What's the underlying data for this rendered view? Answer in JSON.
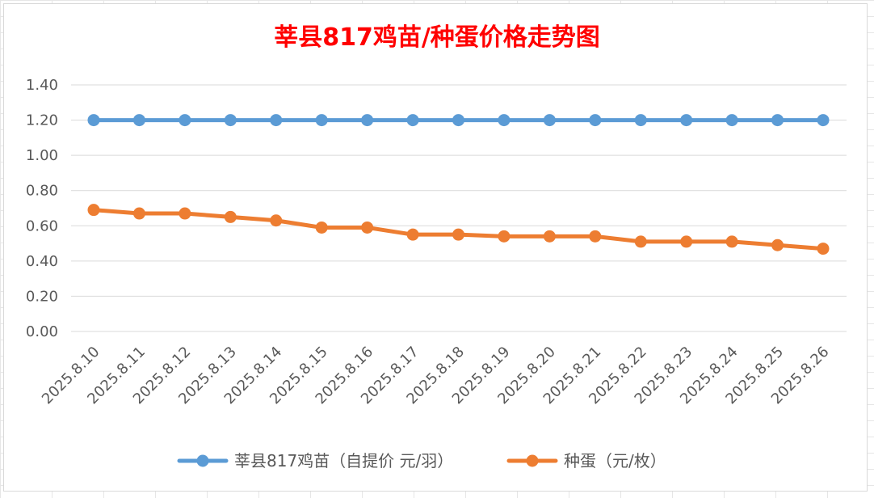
{
  "chart_data": {
    "type": "line",
    "title": "莘县817鸡苗/种蛋价格走势图",
    "categories": [
      "2025.8.10",
      "2025.8.11",
      "2025.8.12",
      "2025.8.13",
      "2025.8.14",
      "2025.8.15",
      "2025.8.16",
      "2025.8.17",
      "2025.8.18",
      "2025.8.19",
      "2025.8.20",
      "2025.8.21",
      "2025.8.22",
      "2025.8.23",
      "2025.8.24",
      "2025.8.25",
      "2025.8.26"
    ],
    "y_ticks": [
      "0.00",
      "0.20",
      "0.40",
      "0.60",
      "0.80",
      "1.00",
      "1.20",
      "1.40"
    ],
    "ylim": [
      0,
      1.4
    ],
    "grid": true,
    "legend_position": "bottom",
    "series": [
      {
        "name": "莘县817鸡苗（自提价 元/羽）",
        "color": "#5b9bd5",
        "values": [
          1.2,
          1.2,
          1.2,
          1.2,
          1.2,
          1.2,
          1.2,
          1.2,
          1.2,
          1.2,
          1.2,
          1.2,
          1.2,
          1.2,
          1.2,
          1.2,
          1.2
        ]
      },
      {
        "name": "种蛋（元/枚）",
        "color": "#ed7d31",
        "values": [
          0.69,
          0.67,
          0.67,
          0.65,
          0.63,
          0.59,
          0.59,
          0.55,
          0.55,
          0.54,
          0.54,
          0.54,
          0.51,
          0.51,
          0.51,
          0.49,
          0.47
        ]
      }
    ]
  }
}
